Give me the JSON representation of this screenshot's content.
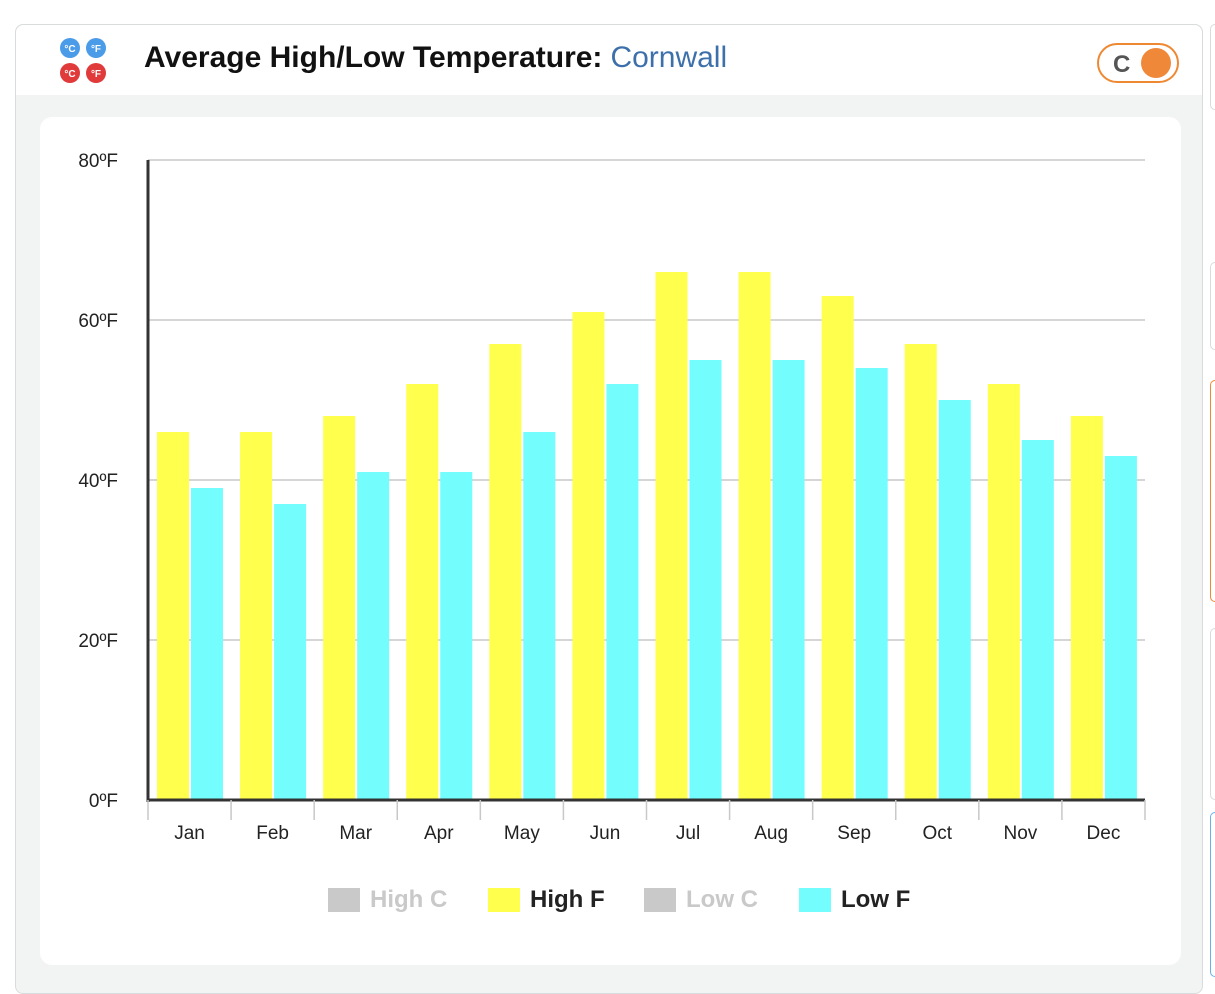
{
  "header": {
    "title": "Average High/Low Temperature:",
    "location": "Cornwall",
    "toggle_label": "C",
    "icon_labels": [
      "°C",
      "°F",
      "°C",
      "°F"
    ]
  },
  "colors": {
    "high_f": "#ffff4d",
    "low_f": "#73fdfd",
    "disabled": "#c9c9c9",
    "accent": "#ef8833",
    "location": "#3d70ab"
  },
  "legend": [
    {
      "label": "High C",
      "color": "#c9c9c9",
      "enabled": false
    },
    {
      "label": "High F",
      "color": "#ffff4d",
      "enabled": true
    },
    {
      "label": "Low C",
      "color": "#c9c9c9",
      "enabled": false
    },
    {
      "label": "Low F",
      "color": "#73fdfd",
      "enabled": true
    }
  ],
  "chart_data": {
    "type": "bar",
    "categories": [
      "Jan",
      "Feb",
      "Mar",
      "Apr",
      "May",
      "Jun",
      "Jul",
      "Aug",
      "Sep",
      "Oct",
      "Nov",
      "Dec"
    ],
    "series": [
      {
        "name": "High F",
        "values": [
          46,
          46,
          48,
          52,
          57,
          61,
          66,
          66,
          63,
          57,
          52,
          48
        ],
        "color": "#ffff4d"
      },
      {
        "name": "Low F",
        "values": [
          39,
          37,
          41,
          41,
          46,
          52,
          55,
          55,
          54,
          50,
          45,
          43
        ],
        "color": "#73fdfd"
      }
    ],
    "ylim": [
      0,
      80
    ],
    "yticks": [
      0,
      20,
      40,
      60,
      80
    ],
    "ytick_labels": [
      "0ºF",
      "20ºF",
      "40ºF",
      "60ºF",
      "80ºF"
    ],
    "grid": true,
    "legend_position": "bottom"
  }
}
